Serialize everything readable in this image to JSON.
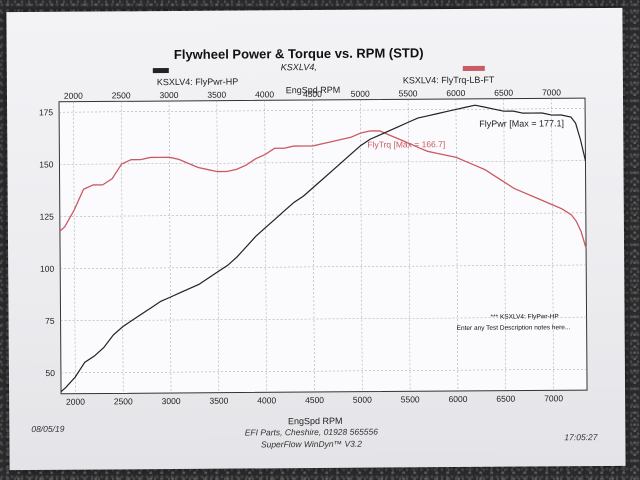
{
  "title": "Flywheel Power & Torque vs. RPM (STD)",
  "subtitle": "KSXLV4,",
  "legend": [
    {
      "label": "KSXLV4: FlyPwr-HP",
      "color": "#222222"
    },
    {
      "label": "KSXLV4: FlyTrq-LB-FT",
      "color": "#c95b62"
    }
  ],
  "top_axis_label": "EngSpd RPM",
  "bottom_axis_label": "EngSpd RPM",
  "max_labels": {
    "power": "FlyPwr [Max = 177.1]",
    "torque": "FlyTrq [Max = 166.7]"
  },
  "notes": {
    "line1": "*** KSXLV4: FlyPwr-HP",
    "line2": "Enter any Test Description notes here..."
  },
  "footer": {
    "date": "08/05/19",
    "company": "EFI Parts, Cheshire, 01928 565556",
    "software": "SuperFlow WinDyn™ V3.2",
    "time": "17:05:27"
  },
  "chart_data": {
    "type": "line",
    "title": "Flywheel Power & Torque vs. RPM (STD)",
    "xlabel": "EngSpd RPM",
    "ylabel": "",
    "xlim": [
      1850,
      7350
    ],
    "ylim": [
      40,
      180
    ],
    "x_ticks": [
      2000,
      2500,
      3000,
      3500,
      4000,
      4500,
      5000,
      5500,
      6000,
      6500,
      7000
    ],
    "y_ticks": [
      50,
      75,
      100,
      125,
      150,
      175
    ],
    "grid": true,
    "series": [
      {
        "name": "KSXLV4: FlyPwr-HP",
        "color": "#222222",
        "x": [
          1850,
          1900,
          2000,
          2100,
          2200,
          2300,
          2400,
          2500,
          2600,
          2700,
          2800,
          2900,
          3000,
          3100,
          3200,
          3300,
          3400,
          3500,
          3600,
          3700,
          3800,
          3900,
          4000,
          4100,
          4200,
          4300,
          4400,
          4500,
          4600,
          4700,
          4800,
          4900,
          5000,
          5100,
          5200,
          5300,
          5400,
          5500,
          5600,
          5700,
          5800,
          5900,
          6000,
          6100,
          6200,
          6300,
          6400,
          6500,
          6600,
          6700,
          6800,
          6900,
          7000,
          7100,
          7200,
          7250,
          7300,
          7350
        ],
        "values": [
          41,
          43,
          48,
          55,
          58,
          62,
          68,
          72,
          75,
          78,
          81,
          84,
          86,
          88,
          90,
          92,
          95,
          98,
          101,
          105,
          110,
          115,
          119,
          123,
          127,
          131,
          134,
          138,
          142,
          146,
          150,
          154,
          158,
          161,
          163,
          165,
          167,
          169,
          171,
          172,
          173,
          174,
          175,
          176,
          177,
          176,
          175,
          174,
          174,
          173,
          173,
          173,
          172,
          172,
          171,
          168,
          160,
          150
        ]
      },
      {
        "name": "KSXLV4: FlyTrq-LB-FT",
        "color": "#c95b62",
        "x": [
          1850,
          1900,
          2000,
          2100,
          2200,
          2300,
          2400,
          2500,
          2600,
          2700,
          2800,
          2900,
          3000,
          3100,
          3200,
          3300,
          3400,
          3500,
          3600,
          3700,
          3800,
          3900,
          4000,
          4100,
          4200,
          4300,
          4400,
          4500,
          4600,
          4700,
          4800,
          4900,
          5000,
          5100,
          5200,
          5300,
          5400,
          5500,
          5600,
          5700,
          5800,
          5900,
          6000,
          6100,
          6200,
          6300,
          6400,
          6500,
          6600,
          6700,
          6800,
          6900,
          7000,
          7100,
          7200,
          7250,
          7300,
          7350
        ],
        "values": [
          118,
          120,
          128,
          138,
          140,
          140,
          143,
          150,
          152,
          152,
          153,
          153,
          153,
          152,
          150,
          148,
          147,
          146,
          146,
          147,
          149,
          152,
          154,
          157,
          157,
          158,
          158,
          158,
          159,
          160,
          161,
          162,
          164,
          165,
          165,
          163,
          161,
          159,
          157,
          155,
          154,
          153,
          152,
          150,
          148,
          146,
          143,
          140,
          137,
          135,
          133,
          131,
          129,
          127,
          124,
          121,
          116,
          108
        ]
      }
    ]
  }
}
